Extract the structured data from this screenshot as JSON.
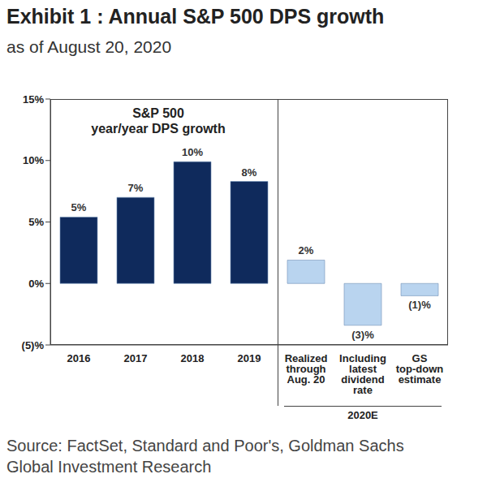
{
  "chart_data": {
    "type": "bar",
    "title": "Exhibit 1 : Annual S&P 500 DPS growth",
    "subtitle": "as of August 20, 2020",
    "annotation": [
      "S&P 500",
      "year/year DPS growth"
    ],
    "categories": [
      "2016",
      "2017",
      "2018",
      "2019",
      "Realized through Aug. 20",
      "Including latest dividend rate",
      "GS top-down estimate"
    ],
    "values": [
      5.4,
      7.0,
      9.9,
      8.3,
      1.9,
      -3.4,
      -1.0
    ],
    "value_labels": [
      "5%",
      "7%",
      "10%",
      "8%",
      "2%",
      "(3)%",
      "(1)%"
    ],
    "data_labels": true,
    "colors": [
      "#0f2a5c",
      "#0f2a5c",
      "#0f2a5c",
      "#0f2a5c",
      "#b9d4ef",
      "#b9d4ef",
      "#b9d4ef"
    ],
    "groups": [
      {
        "label": "2020E",
        "categories": [
          "Realized through Aug. 20",
          "Including latest dividend rate",
          "GS top-down estimate"
        ]
      }
    ],
    "ylim": [
      -5,
      15
    ],
    "yticks": [
      {
        "value": -5,
        "label": "(5)%"
      },
      {
        "value": 0,
        "label": "0%"
      },
      {
        "value": 5,
        "label": "5%"
      },
      {
        "value": 10,
        "label": "10%"
      },
      {
        "value": 15,
        "label": "15%"
      }
    ],
    "grid": false,
    "source": "Source: FactSet, Standard and Poor's, Goldman Sachs Global Investment Research"
  }
}
